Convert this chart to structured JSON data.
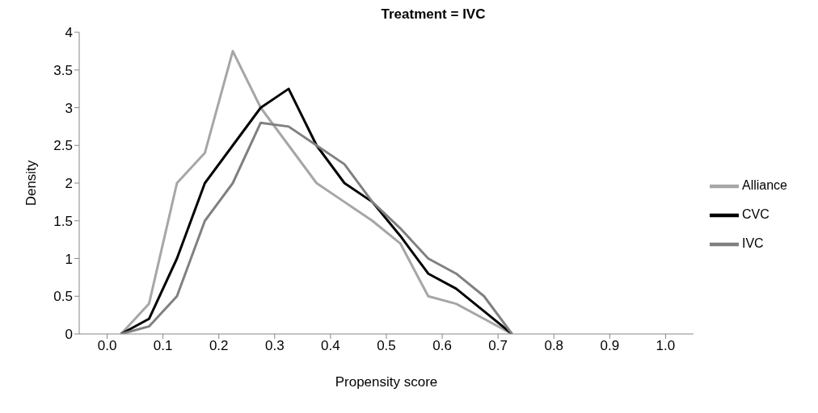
{
  "chart_data": {
    "type": "line",
    "title": "Treatment = IVC",
    "xlabel": "Propensity score",
    "ylabel": "Density",
    "x": [
      0.025,
      0.075,
      0.125,
      0.175,
      0.225,
      0.275,
      0.325,
      0.375,
      0.425,
      0.475,
      0.525,
      0.575,
      0.625,
      0.675,
      0.725
    ],
    "series": [
      {
        "name": "Alliance",
        "color": "#a6a6a6",
        "values": [
          0,
          0.4,
          2.0,
          2.4,
          3.75,
          3.0,
          2.5,
          2.0,
          1.75,
          1.5,
          1.2,
          0.5,
          0.4,
          0.2,
          0
        ]
      },
      {
        "name": "CVC",
        "color": "#000000",
        "values": [
          0,
          0.2,
          1.0,
          2.0,
          2.5,
          3.0,
          3.25,
          2.5,
          2.0,
          1.75,
          1.3,
          0.8,
          0.6,
          0.3,
          0
        ]
      },
      {
        "name": "IVC",
        "color": "#808080",
        "values": [
          0,
          0.1,
          0.5,
          1.5,
          2.0,
          2.8,
          2.75,
          2.5,
          2.25,
          1.75,
          1.4,
          1.0,
          0.8,
          0.5,
          0
        ]
      }
    ],
    "xlim": [
      -0.05,
      1.05
    ],
    "xticks": [
      {
        "value": 0,
        "label": "0.0"
      },
      0.1,
      0.2,
      0.3,
      0.4,
      0.5,
      0.6,
      0.7,
      0.8,
      0.9,
      {
        "value": 1,
        "label": "1.0"
      }
    ],
    "ylim": [
      0,
      4
    ],
    "yticks": [
      0,
      0.5,
      1,
      1.5,
      2,
      2.5,
      3,
      3.5,
      4
    ],
    "grid": false,
    "legend": "right",
    "marker": "none",
    "line_style": "solid"
  }
}
